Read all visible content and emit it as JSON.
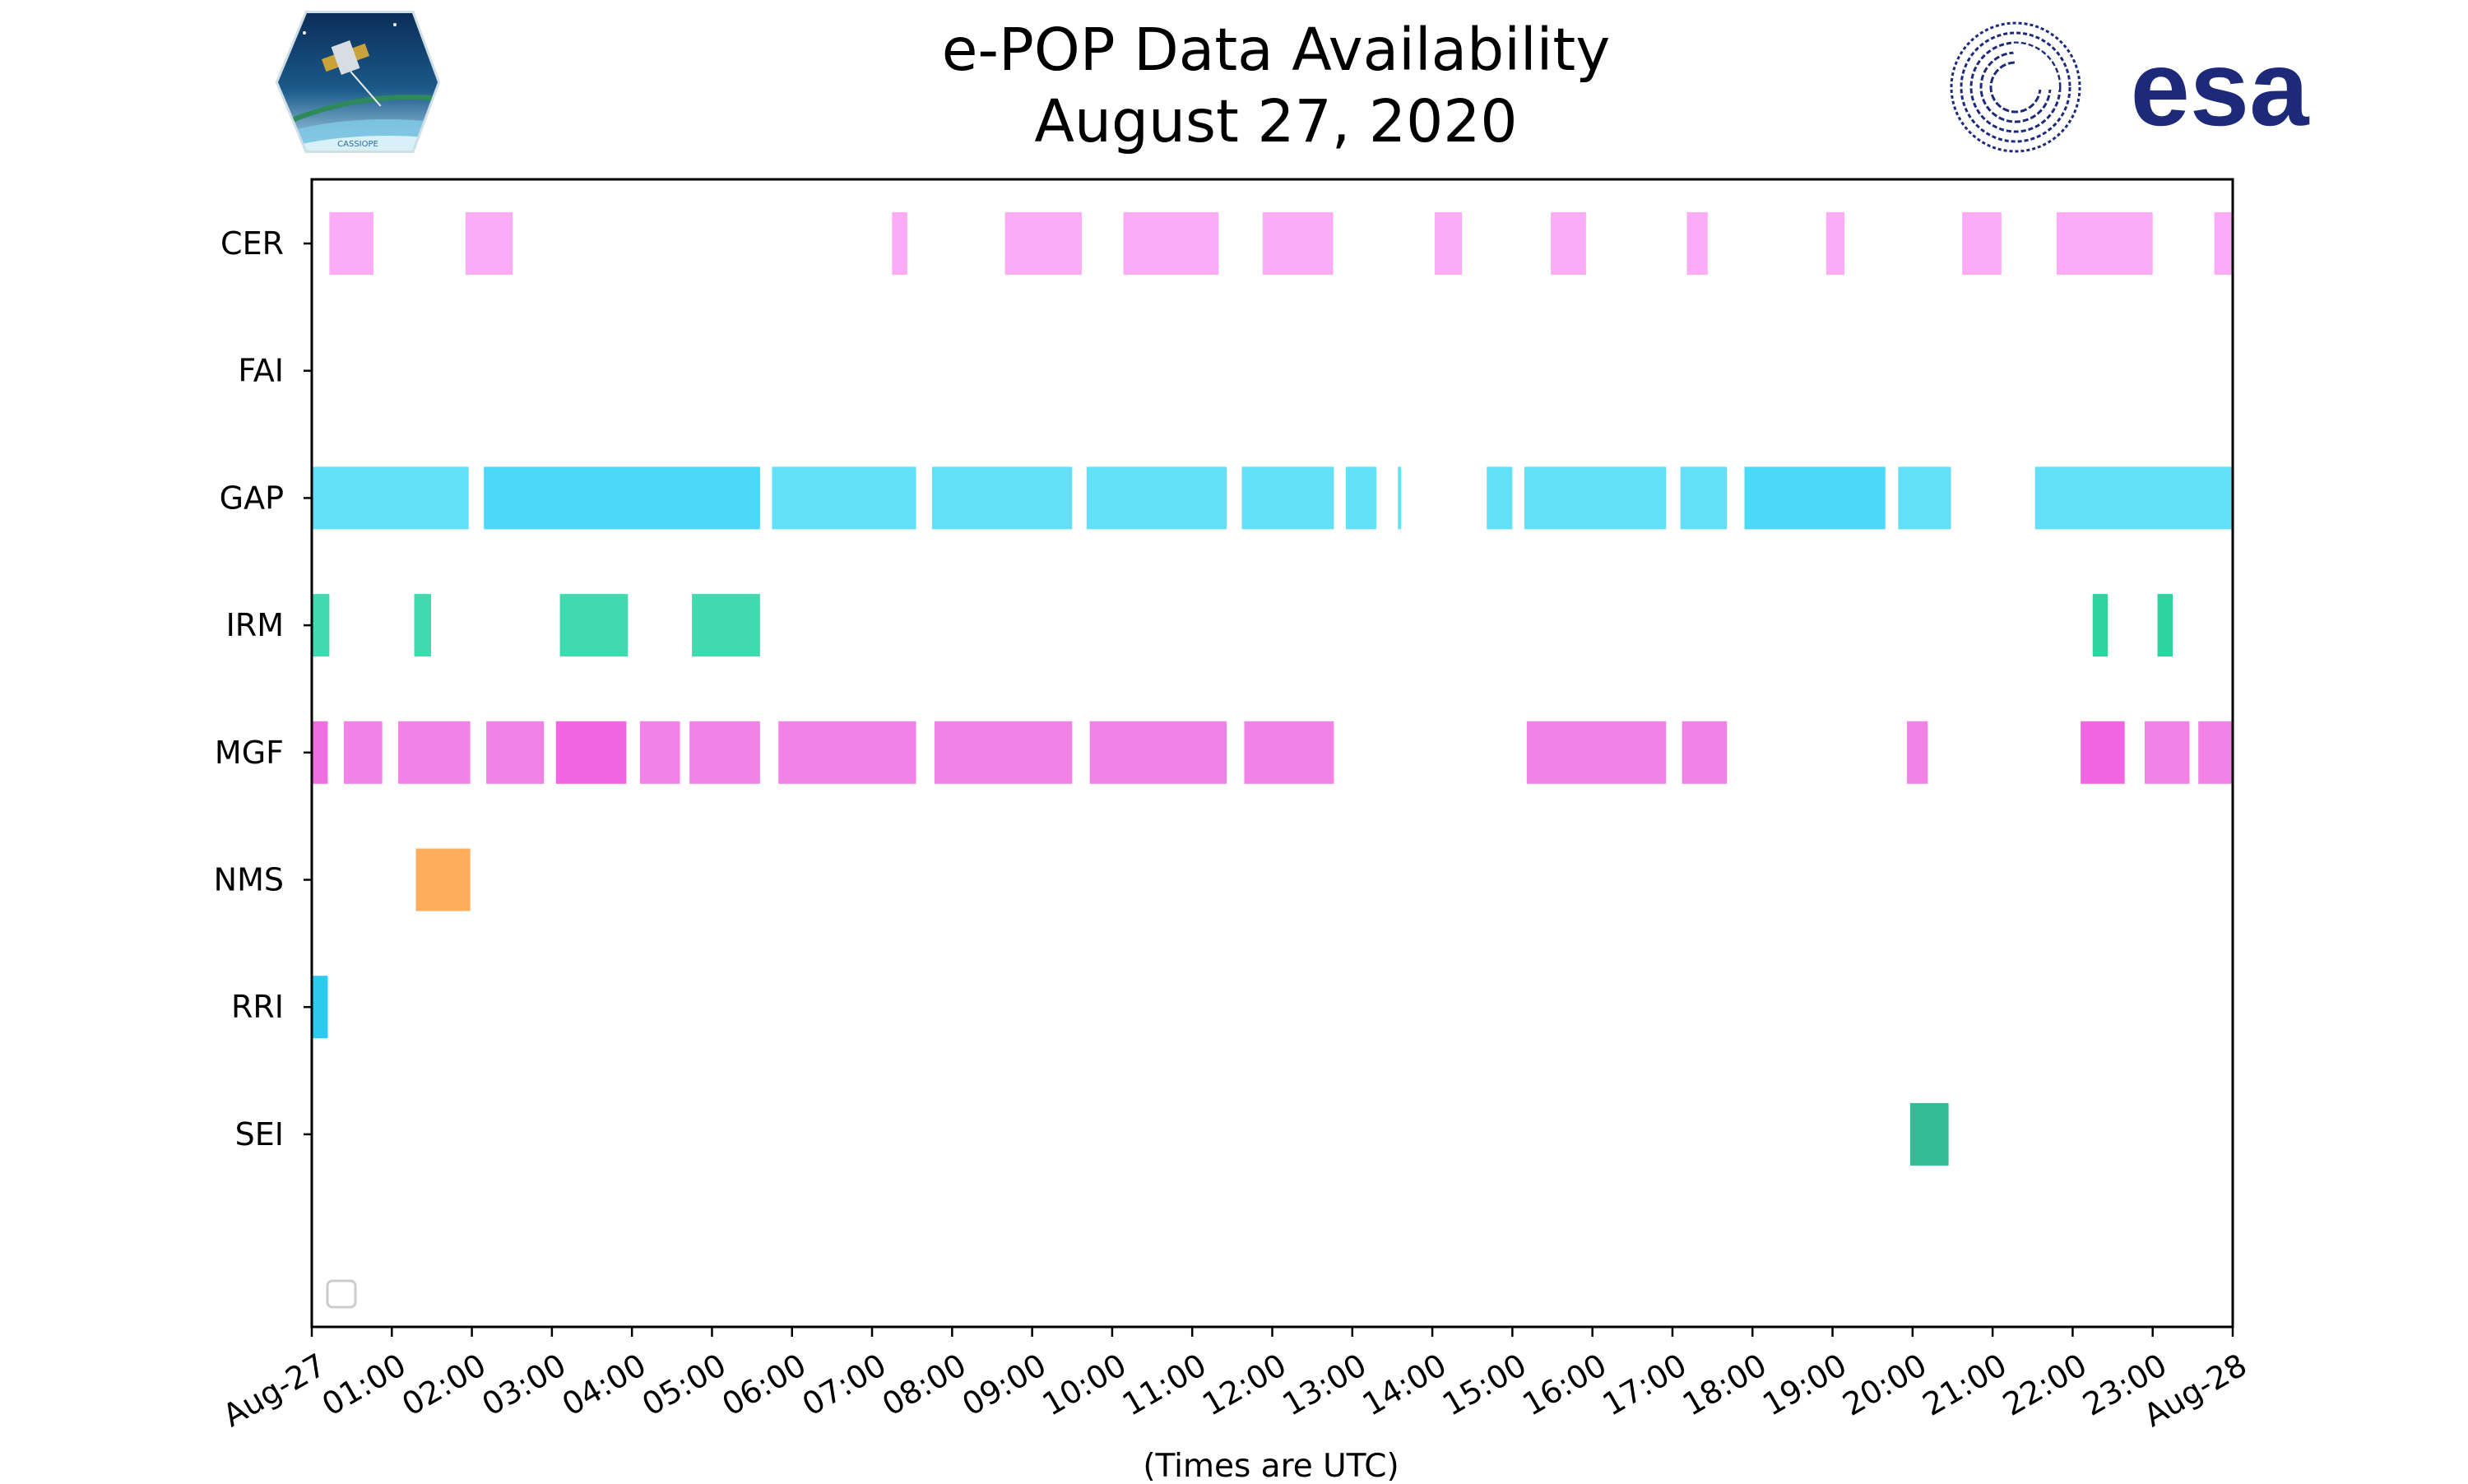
{
  "chart_data": {
    "type": "timeline",
    "title_line1": "e-POP Data Availability",
    "title_line2": "August 27, 2020",
    "xlabel": "(Times are UTC)",
    "x_unit": "hours UTC",
    "xlim": [
      0,
      24
    ],
    "x_tick_labels": [
      "Aug-27",
      "01:00",
      "02:00",
      "03:00",
      "04:00",
      "05:00",
      "06:00",
      "07:00",
      "08:00",
      "09:00",
      "10:00",
      "11:00",
      "12:00",
      "13:00",
      "14:00",
      "15:00",
      "16:00",
      "17:00",
      "18:00",
      "19:00",
      "20:00",
      "21:00",
      "22:00",
      "23:00",
      "Aug-28"
    ],
    "grid": false,
    "legend": "empty, lower-left",
    "instruments": [
      {
        "name": "CER",
        "color": "#fcacf6",
        "segments": [
          [
            0.22,
            0.77,
            "#fcacf6"
          ],
          [
            1.92,
            2.51,
            "#fcacf6"
          ],
          [
            7.25,
            7.44,
            "#fcacf6"
          ],
          [
            8.66,
            9.62,
            "#fcacf6"
          ],
          [
            10.14,
            11.33,
            "#fcacf6"
          ],
          [
            11.88,
            12.76,
            "#fcacf6"
          ],
          [
            14.03,
            14.37,
            "#fcacf6"
          ],
          [
            15.48,
            15.92,
            "#fcacf6"
          ],
          [
            17.18,
            17.44,
            "#fcacf6"
          ],
          [
            18.92,
            19.15,
            "#fcacf6"
          ],
          [
            20.62,
            21.11,
            "#fcacf6"
          ],
          [
            21.8,
            23.0,
            "#fcacf6"
          ],
          [
            23.77,
            24.0,
            "#fcacf6"
          ]
        ]
      },
      {
        "name": "FAI",
        "color": "#cccccc",
        "segments": []
      },
      {
        "name": "GAP",
        "color": "#64dff8",
        "segments": [
          [
            0.0,
            1.96,
            "#64dff8"
          ],
          [
            2.15,
            5.6,
            "#4ad9f9"
          ],
          [
            5.75,
            7.55,
            "#64dff8"
          ],
          [
            7.75,
            9.5,
            "#64dff8"
          ],
          [
            9.68,
            11.43,
            "#64dff8"
          ],
          [
            11.62,
            12.77,
            "#64dff8"
          ],
          [
            12.92,
            13.3,
            "#64dff8"
          ],
          [
            13.57,
            13.61,
            "#64dff8"
          ],
          [
            14.68,
            15.0,
            "#64dff8"
          ],
          [
            15.15,
            16.92,
            "#64dff8"
          ],
          [
            17.1,
            17.68,
            "#64dff8"
          ],
          [
            17.9,
            19.66,
            "#4ad9f9"
          ],
          [
            19.82,
            20.48,
            "#64dff8"
          ],
          [
            21.53,
            24.0,
            "#64dff8"
          ]
        ]
      },
      {
        "name": "IRM",
        "color": "#40d9b0",
        "segments": [
          [
            0.0,
            0.22,
            "#40d9b0"
          ],
          [
            1.28,
            1.49,
            "#40d9b0"
          ],
          [
            3.1,
            3.95,
            "#40d9b0"
          ],
          [
            4.75,
            5.6,
            "#40d9b0"
          ],
          [
            22.25,
            22.44,
            "#2dd4a0"
          ],
          [
            23.06,
            23.25,
            "#2dd4a0"
          ]
        ]
      },
      {
        "name": "MGF",
        "color": "#f282e5",
        "segments": [
          [
            0.0,
            0.2,
            "#f06fe0"
          ],
          [
            0.4,
            0.88,
            "#f282e5"
          ],
          [
            1.08,
            1.98,
            "#f282e5"
          ],
          [
            2.18,
            2.9,
            "#f282e5"
          ],
          [
            3.05,
            3.93,
            "#f166e1"
          ],
          [
            4.1,
            4.6,
            "#f282e5"
          ],
          [
            4.72,
            5.6,
            "#f282e5"
          ],
          [
            5.83,
            7.55,
            "#f282e5"
          ],
          [
            7.78,
            9.5,
            "#f282e5"
          ],
          [
            9.72,
            11.43,
            "#f282e5"
          ],
          [
            11.65,
            12.77,
            "#f282e5"
          ],
          [
            15.18,
            16.92,
            "#f282e5"
          ],
          [
            17.12,
            17.68,
            "#f282e5"
          ],
          [
            19.93,
            20.19,
            "#f282e5"
          ],
          [
            22.1,
            22.65,
            "#f166e1"
          ],
          [
            22.9,
            23.46,
            "#f282e5"
          ],
          [
            23.57,
            24.0,
            "#f282e5"
          ]
        ]
      },
      {
        "name": "NMS",
        "color": "#ffad5c",
        "segments": [
          [
            1.3,
            1.98,
            "#ffad5c"
          ]
        ]
      },
      {
        "name": "RRI",
        "color": "#2ccbee",
        "segments": [
          [
            0.0,
            0.2,
            "#2ccbee"
          ]
        ]
      },
      {
        "name": "SEI",
        "color": "#33bb96",
        "segments": [
          [
            19.97,
            20.45,
            "#33bb96"
          ]
        ]
      }
    ]
  },
  "logos": {
    "left": {
      "name": "cassiope-logo",
      "text": "CASSIOPE"
    },
    "right": {
      "name": "esa-logo",
      "text": "esa",
      "color": "#1d2a7a"
    }
  }
}
